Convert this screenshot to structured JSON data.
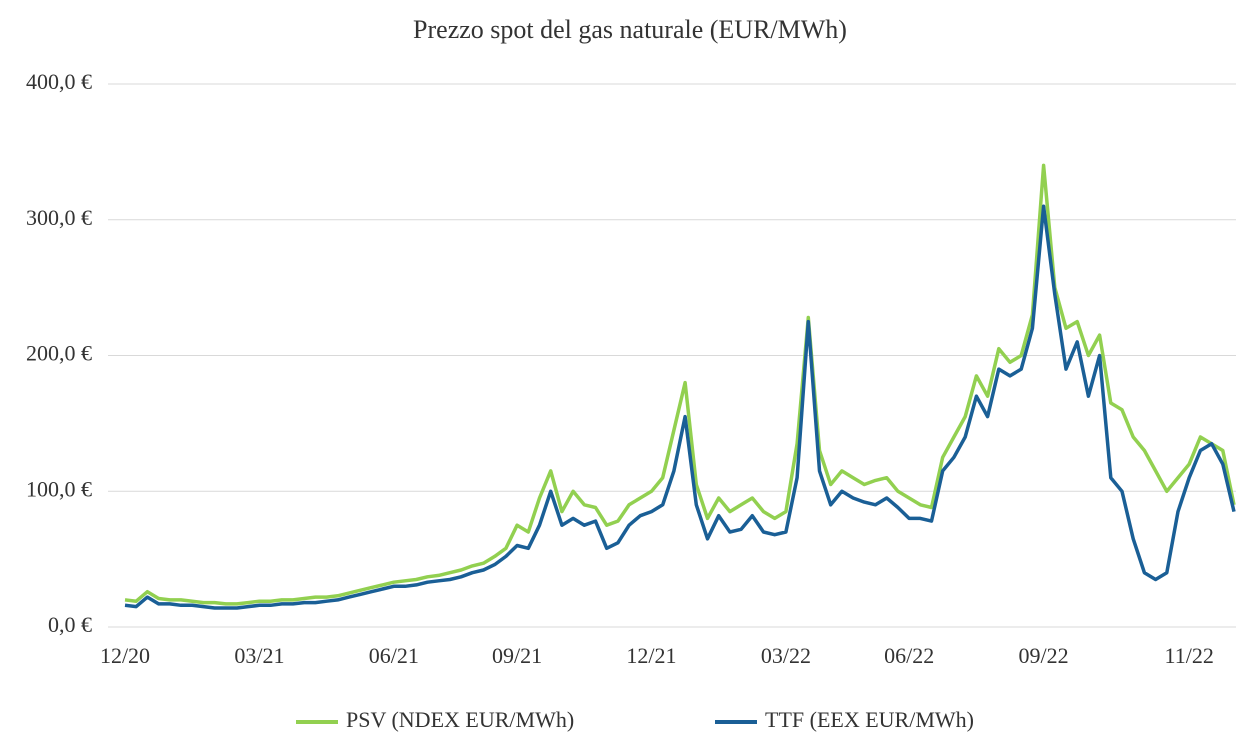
{
  "chart_data": {
    "type": "line",
    "title": "Prezzo spot del gas naturale (EUR/MWh)",
    "categories": [
      "12/20",
      null,
      null,
      null,
      null,
      null,
      null,
      null,
      null,
      null,
      null,
      null,
      "03/21",
      null,
      null,
      null,
      null,
      null,
      null,
      null,
      null,
      null,
      null,
      null,
      "06/21",
      null,
      null,
      null,
      null,
      null,
      null,
      null,
      null,
      null,
      null,
      "09/21",
      null,
      null,
      null,
      null,
      null,
      null,
      null,
      null,
      null,
      null,
      null,
      "12/21",
      null,
      null,
      null,
      null,
      null,
      null,
      null,
      null,
      null,
      null,
      null,
      "03/22",
      null,
      null,
      null,
      null,
      null,
      null,
      null,
      null,
      null,
      null,
      "06/22",
      null,
      null,
      null,
      null,
      null,
      null,
      null,
      null,
      null,
      null,
      null,
      "09/22",
      null,
      null,
      null,
      null,
      null,
      null,
      null,
      null,
      null,
      null,
      null,
      null,
      "11/22",
      null,
      null,
      null,
      null
    ],
    "series": [
      {
        "name": "PSV (NDEX EUR/MWh)",
        "color": "#92d050",
        "values": [
          20,
          19,
          26,
          21,
          20,
          20,
          19,
          18,
          18,
          17,
          17,
          18,
          19,
          19,
          20,
          20,
          21,
          22,
          22,
          23,
          25,
          27,
          29,
          31,
          33,
          34,
          35,
          37,
          38,
          40,
          42,
          45,
          47,
          52,
          58,
          75,
          70,
          95,
          115,
          85,
          100,
          90,
          88,
          75,
          78,
          90,
          95,
          100,
          110,
          145,
          180,
          105,
          80,
          95,
          85,
          90,
          95,
          85,
          80,
          85,
          135,
          228,
          130,
          105,
          115,
          110,
          105,
          108,
          110,
          100,
          95,
          90,
          88,
          125,
          140,
          155,
          185,
          170,
          205,
          195,
          200,
          230,
          340,
          250,
          220,
          225,
          200,
          215,
          165,
          160,
          140,
          130,
          115,
          100,
          110,
          120,
          140,
          135,
          130,
          90
        ]
      },
      {
        "name": "TTF (EEX EUR/MWh)",
        "color": "#1a5f96",
        "values": [
          16,
          15,
          22,
          17,
          17,
          16,
          16,
          15,
          14,
          14,
          14,
          15,
          16,
          16,
          17,
          17,
          18,
          18,
          19,
          20,
          22,
          24,
          26,
          28,
          30,
          30,
          31,
          33,
          34,
          35,
          37,
          40,
          42,
          46,
          52,
          60,
          58,
          75,
          100,
          75,
          80,
          75,
          78,
          58,
          62,
          75,
          82,
          85,
          90,
          115,
          155,
          90,
          65,
          82,
          70,
          72,
          82,
          70,
          68,
          70,
          110,
          225,
          115,
          90,
          100,
          95,
          92,
          90,
          95,
          88,
          80,
          80,
          78,
          115,
          125,
          140,
          170,
          155,
          190,
          185,
          190,
          220,
          310,
          245,
          190,
          210,
          170,
          200,
          110,
          100,
          65,
          40,
          35,
          40,
          85,
          110,
          130,
          135,
          120,
          85
        ]
      }
    ],
    "ylim": [
      0,
      400
    ],
    "yticks": [
      {
        "value": 0,
        "label": "0,0 €"
      },
      {
        "value": 100,
        "label": "100,0 €"
      },
      {
        "value": 200,
        "label": "200,0 €"
      },
      {
        "value": 300,
        "label": "300,0 €"
      },
      {
        "value": 400,
        "label": "400,0 €"
      }
    ],
    "grid": true,
    "legend": "bottom"
  }
}
